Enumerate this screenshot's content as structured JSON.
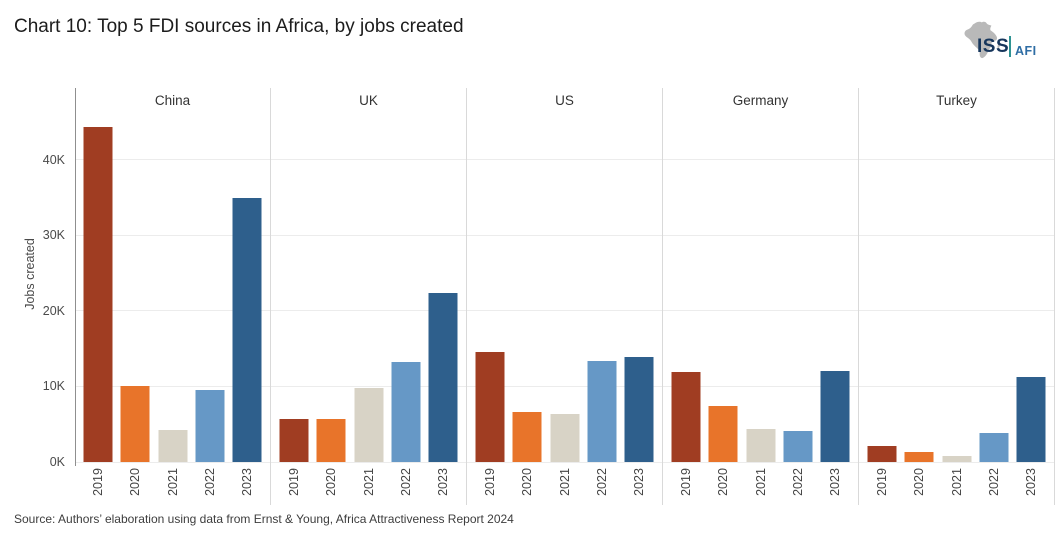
{
  "header": {
    "title": "Chart 10: Top 5 FDI sources in Africa, by jobs created",
    "logo": {
      "org": "ISS",
      "unit": "AFI",
      "org_color": "#16365c",
      "unit_color": "#2e6da4",
      "divider_color": "#2f9393",
      "map_color": "#b9b9b9"
    }
  },
  "footer": {
    "source": "Source: Authors’ elaboration using data from Ernst & Young, Africa Attractiveness Report 2024"
  },
  "chart_data": {
    "type": "bar",
    "title": "Chart 10: Top 5 FDI sources in Africa, by jobs created",
    "xlabel": "",
    "ylabel": "Jobs created",
    "ylim": [
      0,
      49500
    ],
    "grid": true,
    "legend": "none",
    "yticks": [
      {
        "value": 0,
        "label": "0K"
      },
      {
        "value": 10000,
        "label": "10K"
      },
      {
        "value": 20000,
        "label": "20K"
      },
      {
        "value": 30000,
        "label": "30K"
      },
      {
        "value": 40000,
        "label": "40K"
      }
    ],
    "categories": [
      "2019",
      "2020",
      "2021",
      "2022",
      "2023"
    ],
    "category_colors": {
      "2019": "#a03d22",
      "2020": "#e8742a",
      "2021": "#d8d3c6",
      "2022": "#6698c6",
      "2023": "#2e5f8c"
    },
    "facets": [
      {
        "label": "China",
        "values": [
          44300,
          10100,
          4200,
          9600,
          34900
        ]
      },
      {
        "label": "UK",
        "values": [
          5700,
          5700,
          9800,
          13200,
          22400
        ]
      },
      {
        "label": "US",
        "values": [
          14500,
          6600,
          6400,
          13400,
          13900
        ]
      },
      {
        "label": "Germany",
        "values": [
          11900,
          7400,
          4400,
          4100,
          12000
        ]
      },
      {
        "label": "Turkey",
        "values": [
          2100,
          1300,
          800,
          3900,
          11300
        ]
      }
    ]
  }
}
